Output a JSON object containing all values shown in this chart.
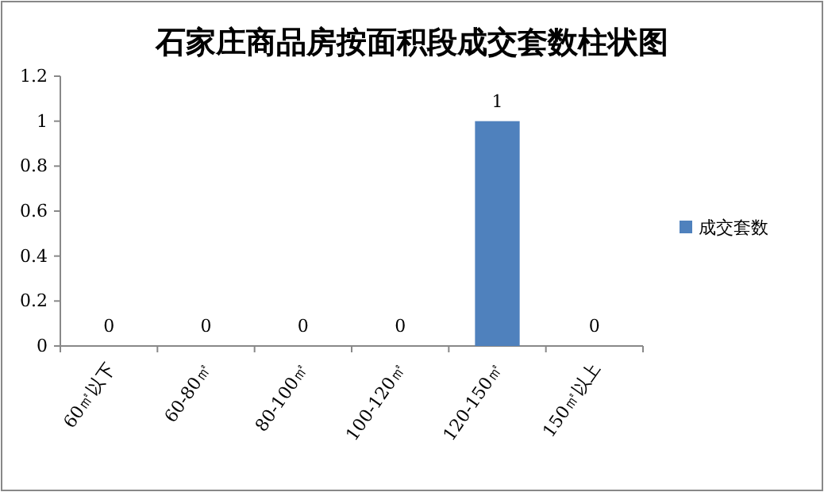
{
  "chart_data": {
    "type": "bar",
    "title": "石家庄商品房按面积段成交套数柱状图",
    "categories": [
      "60㎡以下",
      "60-80㎡",
      "80-100㎡",
      "100-120㎡",
      "120-150㎡",
      "150㎡以上"
    ],
    "series": [
      {
        "name": "成交套数",
        "color": "#4f81bd",
        "values": [
          0,
          0,
          0,
          0,
          1,
          0
        ]
      }
    ],
    "ylim": [
      0,
      1.2
    ],
    "yticks": [
      0,
      0.2,
      0.4,
      0.6,
      0.8,
      1,
      1.2
    ],
    "data_labels": true,
    "legend": "right",
    "grid": false
  }
}
